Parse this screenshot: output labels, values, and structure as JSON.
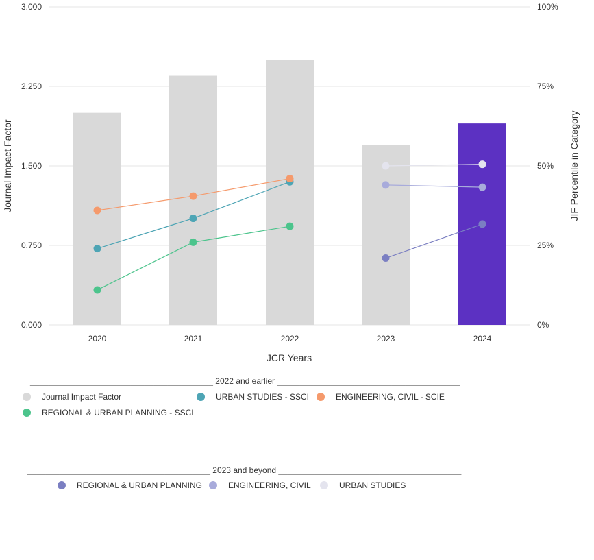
{
  "chart_data": {
    "type": "bar",
    "categories": [
      "2020",
      "2021",
      "2022",
      "2023",
      "2024"
    ],
    "xlabel": "JCR Years",
    "ylabel": "Journal Impact Factor",
    "y2label": "JIF Percentile in Category",
    "ylim": [
      0,
      3
    ],
    "y2lim": [
      0,
      100
    ],
    "y_ticks": [
      "0.000",
      "0.750",
      "1.500",
      "2.250",
      "3.000"
    ],
    "y2_ticks": [
      "0%",
      "25%",
      "50%",
      "75%",
      "100%"
    ],
    "grid": true,
    "bars": {
      "name": "Journal Impact Factor",
      "values": [
        2.0,
        2.35,
        2.5,
        1.7,
        1.9
      ],
      "colors": [
        "#d9d9d9",
        "#d9d9d9",
        "#d9d9d9",
        "#d9d9d9",
        "#5c31c2"
      ]
    },
    "series": [
      {
        "name": "URBAN STUDIES - SSCI",
        "axis": "right",
        "color": "#4ea5b5",
        "points": [
          {
            "x": "2020",
            "y": 24
          },
          {
            "x": "2021",
            "y": 33.5
          },
          {
            "x": "2022",
            "y": 45
          }
        ]
      },
      {
        "name": "ENGINEERING, CIVIL - SCIE",
        "axis": "right",
        "color": "#f59a6c",
        "points": [
          {
            "x": "2020",
            "y": 36
          },
          {
            "x": "2021",
            "y": 40.5
          },
          {
            "x": "2022",
            "y": 46
          }
        ]
      },
      {
        "name": "REGIONAL & URBAN PLANNING - SSCI",
        "axis": "right",
        "color": "#4cc48c",
        "points": [
          {
            "x": "2020",
            "y": 11
          },
          {
            "x": "2021",
            "y": 26
          },
          {
            "x": "2022",
            "y": 31
          }
        ]
      },
      {
        "name": "REGIONAL & URBAN PLANNING",
        "axis": "right",
        "color": "#7b7fc2",
        "points": [
          {
            "x": "2023",
            "y": 21
          },
          {
            "x": "2024",
            "y": 31.7
          }
        ]
      },
      {
        "name": "ENGINEERING, CIVIL",
        "axis": "right",
        "color": "#a8abdb",
        "points": [
          {
            "x": "2023",
            "y": 44
          },
          {
            "x": "2024",
            "y": 43.3
          }
        ]
      },
      {
        "name": "URBAN STUDIES",
        "axis": "right",
        "color": "#e4e4ee",
        "points": [
          {
            "x": "2023",
            "y": 50
          },
          {
            "x": "2024",
            "y": 50.5
          }
        ]
      }
    ]
  },
  "legend": {
    "group1": {
      "heading": "________________________________________ 2022 and earlier ________________________________________",
      "items": [
        {
          "label": "Journal Impact Factor",
          "color": "#d9d9d9"
        },
        {
          "label": "URBAN STUDIES - SSCI",
          "color": "#4ea5b5"
        },
        {
          "label": "ENGINEERING, CIVIL - SCIE",
          "color": "#f59a6c"
        },
        {
          "label": "REGIONAL & URBAN PLANNING - SSCI",
          "color": "#4cc48c"
        }
      ]
    },
    "group2": {
      "heading": "________________________________________ 2023 and beyond ________________________________________",
      "items": [
        {
          "label": "REGIONAL & URBAN PLANNING",
          "color": "#7b7fc2"
        },
        {
          "label": "ENGINEERING, CIVIL",
          "color": "#a8abdb"
        },
        {
          "label": "URBAN STUDIES",
          "color": "#e4e4ee"
        }
      ]
    }
  }
}
